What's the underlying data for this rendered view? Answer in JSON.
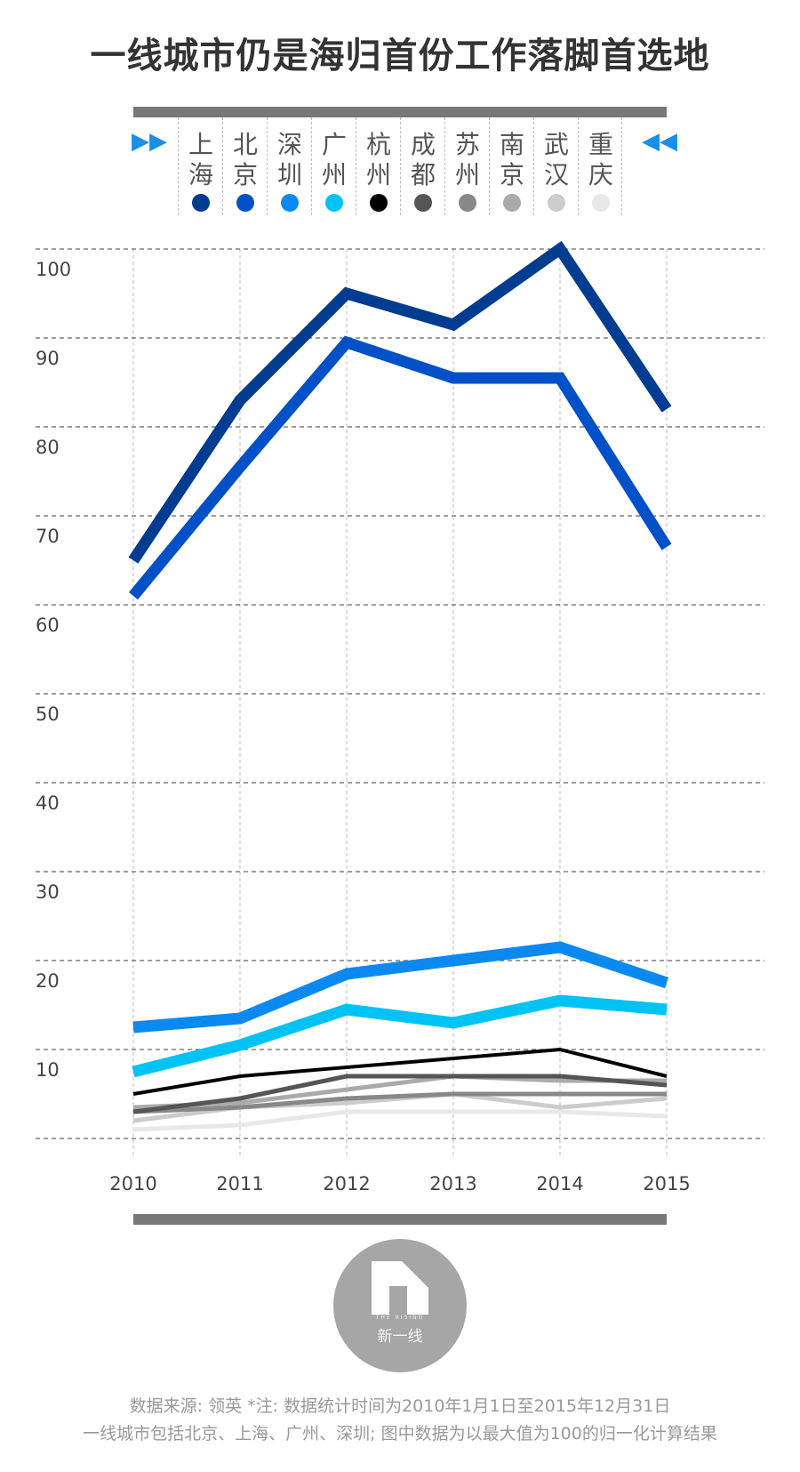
{
  "title": "一线城市仍是海归首份工作落脚首选地",
  "legend": [
    {
      "name": "上海",
      "color": "#003c8f"
    },
    {
      "name": "北京",
      "color": "#0050c8"
    },
    {
      "name": "深圳",
      "color": "#0a8af0"
    },
    {
      "name": "广州",
      "color": "#00c3f5"
    },
    {
      "name": "杭州",
      "color": "#000000"
    },
    {
      "name": "成都",
      "color": "#555555"
    },
    {
      "name": "苏州",
      "color": "#888888"
    },
    {
      "name": "南京",
      "color": "#aaaaaa"
    },
    {
      "name": "武汉",
      "color": "#cccccc"
    },
    {
      "name": "重庆",
      "color": "#e8e8e8"
    }
  ],
  "chart_data": {
    "type": "line",
    "title": "一线城市仍是海归首份工作落脚首选地",
    "x": [
      "2010",
      "2011",
      "2012",
      "2013",
      "2014",
      "2015"
    ],
    "ylim": [
      0,
      100
    ],
    "yticks": [
      10,
      20,
      30,
      40,
      50,
      60,
      70,
      80,
      90,
      100
    ],
    "grid": true,
    "legend_position": "top",
    "series": [
      {
        "name": "上海",
        "color": "#003c8f",
        "values": [
          65,
          83,
          95,
          91.5,
          100,
          82
        ],
        "width": 13
      },
      {
        "name": "北京",
        "color": "#0050c8",
        "values": [
          61,
          75.5,
          89.5,
          85.5,
          85.5,
          66.5
        ],
        "width": 13
      },
      {
        "name": "深圳",
        "color": "#0a8af0",
        "values": [
          12.5,
          13.5,
          18.5,
          20,
          21.5,
          17.5
        ],
        "width": 13
      },
      {
        "name": "广州",
        "color": "#00c3f5",
        "values": [
          7.5,
          10.5,
          14.5,
          13,
          15.5,
          14.5
        ],
        "width": 13
      },
      {
        "name": "杭州",
        "color": "#000000",
        "values": [
          5,
          7,
          8,
          9,
          10,
          7
        ],
        "width": 4
      },
      {
        "name": "成都",
        "color": "#555555",
        "values": [
          3,
          4.5,
          7,
          7,
          7,
          6
        ],
        "width": 5
      },
      {
        "name": "苏州",
        "color": "#888888",
        "values": [
          3,
          3.5,
          4.5,
          5,
          5,
          5
        ],
        "width": 5
      },
      {
        "name": "南京",
        "color": "#aaaaaa",
        "values": [
          3.5,
          4,
          5.5,
          7,
          6.5,
          6.5
        ],
        "width": 5
      },
      {
        "name": "武汉",
        "color": "#cccccc",
        "values": [
          2,
          3.5,
          4,
          5,
          3.5,
          4.5
        ],
        "width": 5
      },
      {
        "name": "重庆",
        "color": "#e8e8e8",
        "values": [
          1,
          1.5,
          3,
          3,
          3,
          2.5
        ],
        "width": 5
      }
    ]
  },
  "logo": {
    "sub": "THE RISING",
    "name": "新一线"
  },
  "footer": {
    "line1": "数据来源: 领英  *注: 数据统计时间为2010年1月1日至2015年12月31日",
    "line2": "一线城市包括北京、上海、广州、深圳; 图中数据为以最大值为100的归一化计算结果"
  }
}
